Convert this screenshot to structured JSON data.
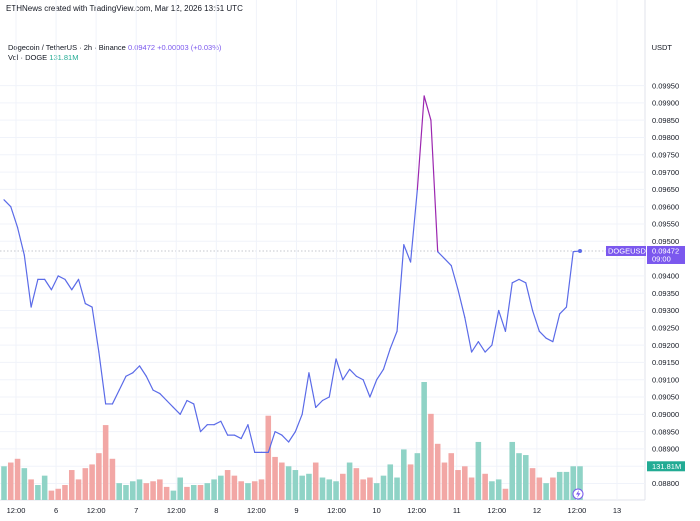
{
  "header": {
    "attribution": "ETHNews created with TradingView.com, Mar 12, 2026 13:51 UTC"
  },
  "legend": {
    "symbol": "Dogecoin / TetherUS · 2h · Binance",
    "price": "0.09472",
    "change": "+0.00003 (+0.03%)",
    "vol_label": "Vol · DOGE",
    "vol_value": "131.81M"
  },
  "price_axis": {
    "unit": "USDT",
    "ticks": [
      "0.09950",
      "0.09900",
      "0.09850",
      "0.09800",
      "0.09750",
      "0.09700",
      "0.09650",
      "0.09600",
      "0.09550",
      "0.09500",
      "0.09450",
      "0.09400",
      "0.09350",
      "0.09300",
      "0.09250",
      "0.09200",
      "0.09150",
      "0.09100",
      "0.09050",
      "0.09000",
      "0.08950",
      "0.08900",
      "0.08850",
      "0.08800"
    ]
  },
  "time_axis": {
    "labels": [
      "12:00",
      "6",
      "12:00",
      "7",
      "12:00",
      "8",
      "12:00",
      "9",
      "12:00",
      "10",
      "12:00",
      "11",
      "12:00",
      "12",
      "12:00",
      "13"
    ]
  },
  "last_price_tag": {
    "symbol": "DOGEUSDT",
    "price": "0.09472",
    "countdown": "09:00"
  },
  "volume_tag": "131.81M",
  "colors": {
    "line": "#5b6be8",
    "line_peak": "#9c27b0",
    "up_volume": "#8fd3c6",
    "down_volume": "#f2a7a5",
    "tag": "#7b58ee",
    "volume_tag": "#22ab94"
  },
  "chart_data": {
    "type": "line",
    "ylim": [
      0.0879,
      0.09995
    ],
    "x_ticks": [
      "12:00",
      "6",
      "12:00",
      "7",
      "12:00",
      "8",
      "12:00",
      "9",
      "12:00",
      "10",
      "12:00",
      "11",
      "12:00",
      "12",
      "12:00",
      "13"
    ],
    "series": [
      {
        "values": [
          0.0962,
          0.096,
          0.0954,
          0.0946,
          0.0931,
          0.0939,
          0.0939,
          0.0936,
          0.094,
          0.0939,
          0.0936,
          0.0939,
          0.0932,
          0.0931,
          0.0918,
          0.0903,
          0.0903,
          0.0907,
          0.0911,
          0.0912,
          0.0914,
          0.0911,
          0.0907,
          0.0906,
          0.0904,
          0.0902,
          0.09,
          0.0904,
          0.0903,
          0.0895,
          0.0897,
          0.0897,
          0.0898,
          0.0894,
          0.0894,
          0.0893,
          0.0897,
          0.0889,
          0.0889,
          0.0889,
          0.0895,
          0.0894,
          0.0892,
          0.0895,
          0.09,
          0.0912,
          0.0902,
          0.0904,
          0.0905,
          0.0916,
          0.091,
          0.0913,
          0.0911,
          0.091,
          0.0905,
          0.091,
          0.0913,
          0.0919,
          0.0924,
          0.0949,
          0.0944,
          0.0965,
          0.0992,
          0.0985,
          0.0947,
          0.0945,
          0.0943,
          0.0936,
          0.0928,
          0.0918,
          0.0921,
          0.0918,
          0.092,
          0.093,
          0.0924,
          0.0938,
          0.0939,
          0.0938,
          0.093,
          0.0924,
          0.0922,
          0.0921,
          0.0929,
          0.0931,
          0.0947,
          0.09472
        ]
      }
    ],
    "volume": {
      "values": [
        18,
        20,
        22,
        17,
        11,
        8,
        13,
        5,
        6,
        8,
        16,
        11,
        17,
        19,
        25,
        40,
        22,
        9,
        8,
        10,
        11,
        9,
        10,
        11,
        7,
        5,
        12,
        7,
        8,
        8,
        9,
        11,
        13,
        16,
        13,
        10,
        9,
        10,
        11,
        45,
        23,
        20,
        18,
        16,
        13,
        14,
        20,
        12,
        11,
        10,
        14,
        20,
        17,
        11,
        12,
        9,
        13,
        19,
        12,
        27,
        19,
        25,
        63,
        46,
        30,
        20,
        25,
        16,
        18,
        12,
        31,
        14,
        10,
        11,
        6,
        31,
        25,
        24,
        17,
        12,
        9,
        12,
        15,
        15,
        18,
        18
      ],
      "up": [
        1,
        0,
        0,
        1,
        0,
        1,
        1,
        0,
        0,
        0,
        0,
        0,
        0,
        0,
        0,
        0,
        0,
        1,
        1,
        1,
        1,
        0,
        0,
        0,
        0,
        1,
        1,
        0,
        1,
        0,
        1,
        1,
        1,
        0,
        0,
        0,
        1,
        0,
        0,
        0,
        0,
        0,
        1,
        1,
        1,
        1,
        0,
        1,
        1,
        1,
        0,
        1,
        0,
        0,
        0,
        1,
        1,
        1,
        1,
        1,
        0,
        1,
        1,
        0,
        0,
        0,
        0,
        0,
        0,
        0,
        1,
        0,
        1,
        1,
        0,
        1,
        1,
        1,
        0,
        0,
        1,
        0,
        1,
        1,
        1,
        1
      ]
    }
  }
}
